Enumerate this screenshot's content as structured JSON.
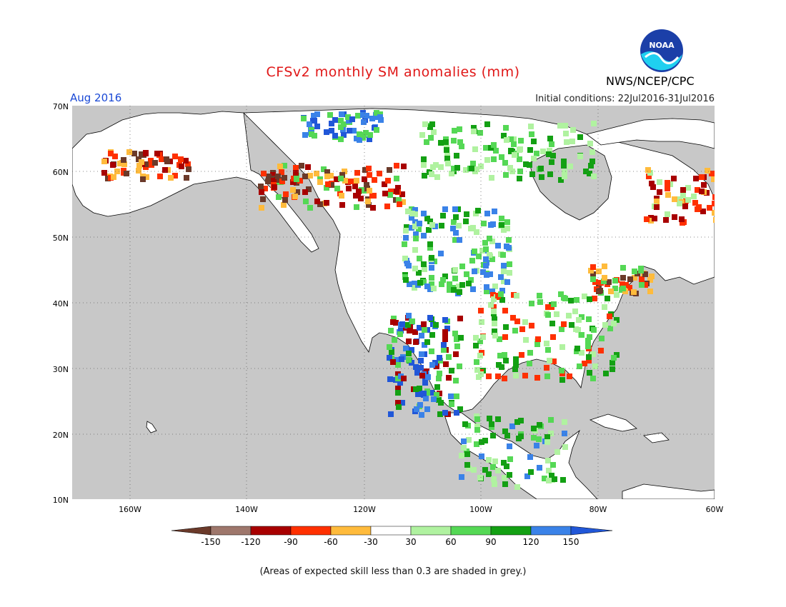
{
  "header": {
    "title": "CFSv2 monthly SM anomalies (mm)",
    "month": "Aug 2016",
    "initial_conditions": "Initial conditions: 22Jul2016-31Jul2016",
    "agency": "NWS/NCEP/CPC",
    "logo_text": "NOAA"
  },
  "map": {
    "latitude_labels": [
      "70N",
      "60N",
      "50N",
      "40N",
      "30N",
      "20N",
      "10N"
    ],
    "longitude_labels": [
      "160W",
      "140W",
      "120W",
      "100W",
      "80W",
      "60W"
    ],
    "grey_color": "#c8c8c8",
    "ocean_color": "#c8c8c8",
    "land_color": "#ffffff"
  },
  "colorbar": {
    "labels": [
      "-150",
      "-120",
      "-90",
      "-60",
      "-30",
      "30",
      "60",
      "90",
      "120",
      "150"
    ],
    "colors": [
      "#6b3a2a",
      "#9e776c",
      "#a80000",
      "#ff3000",
      "#ffbb3c",
      "#ffffff",
      "#b0f2a0",
      "#55d855",
      "#13a013",
      "#3a82e8",
      "#2157d8"
    ]
  },
  "footnote": "(Areas of expected skill less than 0.3 are shaded in grey.)"
}
